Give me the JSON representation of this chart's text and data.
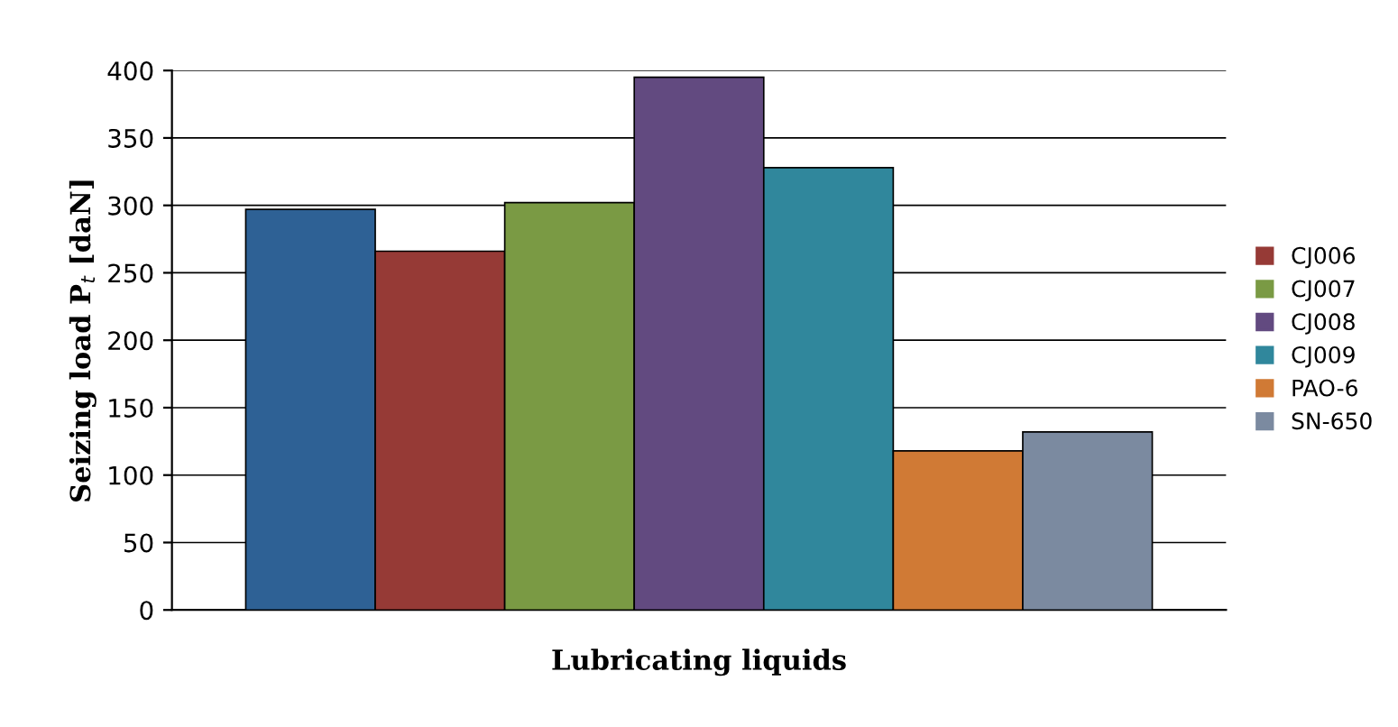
{
  "chart_data": {
    "type": "bar",
    "xlabel": "Lubricating liquids",
    "ylabel": "Seizing load P$_{t}$ [daN]",
    "categories": [
      null
    ],
    "series": [
      {
        "color": "#2e6195",
        "values": [
          297
        ]
      },
      {
        "name": "CJ006",
        "color": "#963a36",
        "values": [
          266
        ]
      },
      {
        "name": "CJ007",
        "color": "#7a9a44",
        "values": [
          302
        ]
      },
      {
        "name": "CJ008",
        "color": "#624a80",
        "values": [
          395
        ]
      },
      {
        "name": "CJ009",
        "color": "#30879c",
        "values": [
          328
        ]
      },
      {
        "name": "PAO-6",
        "color": "#d07a35",
        "values": [
          118
        ]
      },
      {
        "name": "SN-650",
        "color": "#7b8aa0",
        "values": [
          132
        ]
      }
    ],
    "ylim": [
      0,
      400
    ],
    "yticks": [
      0,
      50,
      100,
      150,
      200,
      250,
      300,
      350,
      400
    ],
    "grid": "y",
    "legend": "right"
  }
}
